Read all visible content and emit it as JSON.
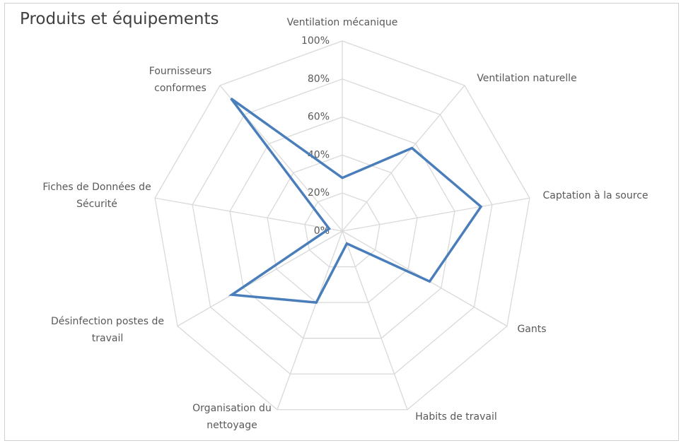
{
  "chart_data": {
    "type": "radar",
    "title": "Produits et équipements",
    "categories": [
      "Ventilation mécanique",
      "Ventilation naturelle",
      "Captation à la source",
      "Gants",
      "Habits de travail",
      "Organisation du nettoyage",
      "Désinfection postes de travail",
      "Fiches de Données de Sécurité",
      "Fournisseurs conformes"
    ],
    "values": [
      28,
      57,
      74,
      53,
      7,
      40,
      67,
      7,
      91
    ],
    "color": "#4a7ebb",
    "ylim": [
      0,
      100
    ],
    "yticks": [
      {
        "value": 0,
        "label": "0%"
      },
      {
        "value": 20,
        "label": "20%"
      },
      {
        "value": 40,
        "label": "40%"
      },
      {
        "value": 60,
        "label": "60%"
      },
      {
        "value": 80,
        "label": "80%"
      },
      {
        "value": 100,
        "label": "100%"
      }
    ],
    "grid": true
  }
}
